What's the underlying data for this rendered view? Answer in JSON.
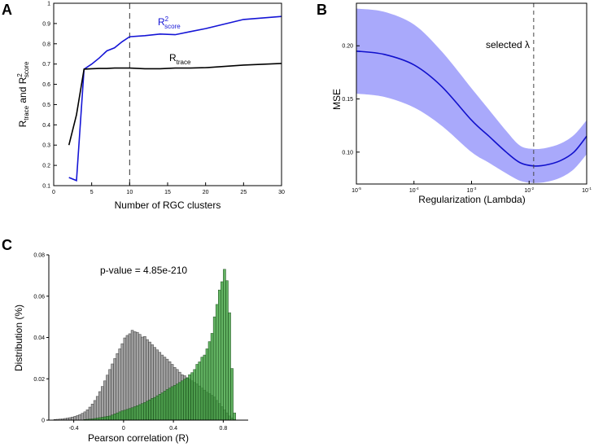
{
  "panels": {
    "a": {
      "letter": "A",
      "chart_data": {
        "type": "line",
        "xlabel": "Number of RGC clusters",
        "ylabel": {
          "main": "R",
          "sub1": "trace",
          "mid": " and R",
          "sup2": "2",
          "sub2": "score"
        },
        "xlim": [
          0,
          30
        ],
        "ylim": [
          0.1,
          1.0
        ],
        "xticks": [
          0,
          5,
          10,
          15,
          20,
          25,
          30
        ],
        "yticks": [
          0.1,
          0.2,
          0.3,
          0.4,
          0.5,
          0.6,
          0.7,
          0.8,
          0.9,
          1.0
        ],
        "vline": 10,
        "series": [
          {
            "name": "score",
            "label": {
              "main": "R",
              "sup": "2",
              "sub": "score"
            },
            "color": "#1515d6",
            "x": [
              2,
              3,
              4,
              5,
              6,
              7,
              8,
              9,
              10,
              12,
              14,
              16,
              18,
              20,
              25,
              30
            ],
            "y": [
              0.14,
              0.125,
              0.675,
              0.7,
              0.73,
              0.765,
              0.78,
              0.81,
              0.835,
              0.84,
              0.848,
              0.845,
              0.86,
              0.875,
              0.92,
              0.935
            ]
          },
          {
            "name": "trace",
            "label": {
              "main": "R",
              "sub": "trace"
            },
            "color": "#000000",
            "x": [
              2,
              3,
              4,
              5,
              6,
              7,
              8,
              9,
              10,
              12,
              14,
              16,
              18,
              20,
              25,
              30
            ],
            "y": [
              0.3,
              0.45,
              0.675,
              0.677,
              0.678,
              0.678,
              0.68,
              0.68,
              0.68,
              0.677,
              0.677,
              0.68,
              0.68,
              0.682,
              0.695,
              0.703
            ]
          }
        ]
      }
    },
    "b": {
      "letter": "B",
      "chart_data": {
        "type": "line",
        "xscale": "log",
        "xlabel": "Regularization (Lambda)",
        "ylabel": "MSE",
        "xlim": [
          1e-05,
          0.1
        ],
        "ylim": [
          0.07,
          0.24
        ],
        "xticks": [
          1e-05,
          0.0001,
          0.001,
          0.01,
          0.1
        ],
        "xtick_labels": [
          {
            "base": "10",
            "exp": "-5"
          },
          {
            "base": "10",
            "exp": "-4"
          },
          {
            "base": "10",
            "exp": "-3"
          },
          {
            "base": "10",
            "exp": "-2"
          },
          {
            "base": "10",
            "exp": "-1"
          }
        ],
        "yticks": [
          0.1,
          0.15,
          0.2
        ],
        "ytick_labels": [
          "0.10",
          "0.15",
          "0.20"
        ],
        "vline": 0.012,
        "vline_label": "selected λ",
        "line_color": "#1010cc",
        "band_color": "#a9a9fb",
        "x": [
          1e-05,
          3e-05,
          0.0001,
          0.0003,
          0.001,
          0.002,
          0.004,
          0.007,
          0.012,
          0.02,
          0.035,
          0.06,
          0.1
        ],
        "mean": [
          0.195,
          0.192,
          0.182,
          0.162,
          0.13,
          0.115,
          0.1,
          0.09,
          0.087,
          0.088,
          0.092,
          0.1,
          0.115
        ],
        "upper": [
          0.235,
          0.232,
          0.22,
          0.195,
          0.16,
          0.14,
          0.12,
          0.106,
          0.103,
          0.104,
          0.108,
          0.116,
          0.13
        ],
        "lower": [
          0.155,
          0.152,
          0.142,
          0.125,
          0.1,
          0.09,
          0.08,
          0.073,
          0.071,
          0.072,
          0.076,
          0.084,
          0.098
        ]
      }
    },
    "c": {
      "letter": "C",
      "annotation": "p-value = 4.85e-210",
      "chart_data": {
        "type": "bar",
        "subtype": "histogram",
        "xlabel": "Pearson correlation (R)",
        "ylabel": "Distribution (%)",
        "xlim": [
          -0.6,
          1.0
        ],
        "ylim": [
          0,
          0.08
        ],
        "xticks": [
          -0.4,
          0,
          0.4,
          0.8
        ],
        "xtick_labels": [
          "-0.4",
          "0",
          "0.4",
          "0.8"
        ],
        "yticks": [
          0,
          0.02,
          0.04,
          0.06,
          0.08
        ],
        "ytick_labels": [
          "0",
          "0.02",
          "0.04",
          "0.06",
          "0.08"
        ],
        "bin_width": 0.02,
        "series": [
          {
            "color": "#9e9e9e",
            "edge": "#3a3a3a",
            "bin_starts": [
              -0.56,
              -0.54,
              -0.52,
              -0.5,
              -0.48,
              -0.46,
              -0.44,
              -0.42,
              -0.4,
              -0.38,
              -0.36,
              -0.34,
              -0.32,
              -0.3,
              -0.28,
              -0.26,
              -0.24,
              -0.22,
              -0.2,
              -0.18,
              -0.16,
              -0.14,
              -0.12,
              -0.1,
              -0.08,
              -0.06,
              -0.04,
              -0.02,
              0,
              0.02,
              0.04,
              0.06,
              0.08,
              0.1,
              0.12,
              0.14,
              0.16,
              0.18,
              0.2,
              0.22,
              0.24,
              0.26,
              0.28,
              0.3,
              0.32,
              0.34,
              0.36,
              0.38,
              0.4,
              0.42,
              0.44,
              0.46,
              0.48,
              0.5,
              0.52,
              0.54,
              0.56,
              0.58,
              0.6,
              0.62,
              0.64,
              0.66,
              0.68,
              0.7,
              0.72,
              0.74,
              0.76,
              0.78,
              0.8,
              0.82,
              0.84,
              0.86,
              0.88
            ],
            "values": [
              0.0003,
              0.0004,
              0.0005,
              0.0006,
              0.0008,
              0.001,
              0.0012,
              0.0015,
              0.0018,
              0.0022,
              0.0027,
              0.0033,
              0.004,
              0.005,
              0.0063,
              0.0078,
              0.0095,
              0.0115,
              0.0138,
              0.0163,
              0.019,
              0.0218,
              0.0245,
              0.0272,
              0.0298,
              0.0322,
              0.0345,
              0.037,
              0.0398,
              0.041,
              0.0418,
              0.0435,
              0.0428,
              0.0425,
              0.0415,
              0.0402,
              0.0405,
              0.039,
              0.0378,
              0.0365,
              0.0352,
              0.034,
              0.0328,
              0.0315,
              0.0305,
              0.0295,
              0.0283,
              0.027,
              0.0255,
              0.0245,
              0.0232,
              0.022,
              0.0215,
              0.0205,
              0.0198,
              0.019,
              0.0182,
              0.0175,
              0.0165,
              0.0155,
              0.0145,
              0.0135,
              0.0128,
              0.012,
              0.0112,
              0.0095,
              0.008,
              0.0065,
              0.005,
              0.0035,
              0.002,
              0.001,
              0.0003
            ]
          },
          {
            "color": "#2f9a2f",
            "edge": "#1d4e1d",
            "bin_starts": [
              -0.32,
              -0.3,
              -0.28,
              -0.26,
              -0.24,
              -0.22,
              -0.2,
              -0.18,
              -0.16,
              -0.14,
              -0.12,
              -0.1,
              -0.08,
              -0.06,
              -0.04,
              -0.02,
              0,
              0.02,
              0.04,
              0.06,
              0.08,
              0.1,
              0.12,
              0.14,
              0.16,
              0.18,
              0.2,
              0.22,
              0.24,
              0.26,
              0.28,
              0.3,
              0.32,
              0.34,
              0.36,
              0.38,
              0.4,
              0.42,
              0.44,
              0.46,
              0.48,
              0.5,
              0.52,
              0.54,
              0.56,
              0.58,
              0.6,
              0.62,
              0.64,
              0.66,
              0.68,
              0.7,
              0.72,
              0.74,
              0.76,
              0.78,
              0.8,
              0.82,
              0.84,
              0.86,
              0.88
            ],
            "values": [
              0.0003,
              0.0004,
              0.0005,
              0.0006,
              0.0008,
              0.001,
              0.0012,
              0.0014,
              0.0016,
              0.0018,
              0.002,
              0.0025,
              0.003,
              0.0035,
              0.004,
              0.0045,
              0.0048,
              0.0052,
              0.0056,
              0.006,
              0.0065,
              0.007,
              0.0075,
              0.008,
              0.0085,
              0.0092,
              0.0098,
              0.0105,
              0.011,
              0.0118,
              0.0125,
              0.0132,
              0.014,
              0.0148,
              0.0155,
              0.0162,
              0.0168,
              0.0175,
              0.0182,
              0.019,
              0.0198,
              0.0205,
              0.022,
              0.023,
              0.0245,
              0.027,
              0.0282,
              0.0305,
              0.0315,
              0.0345,
              0.038,
              0.042,
              0.05,
              0.056,
              0.063,
              0.067,
              0.073,
              0.0675,
              0.052,
              0.025,
              0.0035
            ]
          }
        ]
      }
    }
  }
}
